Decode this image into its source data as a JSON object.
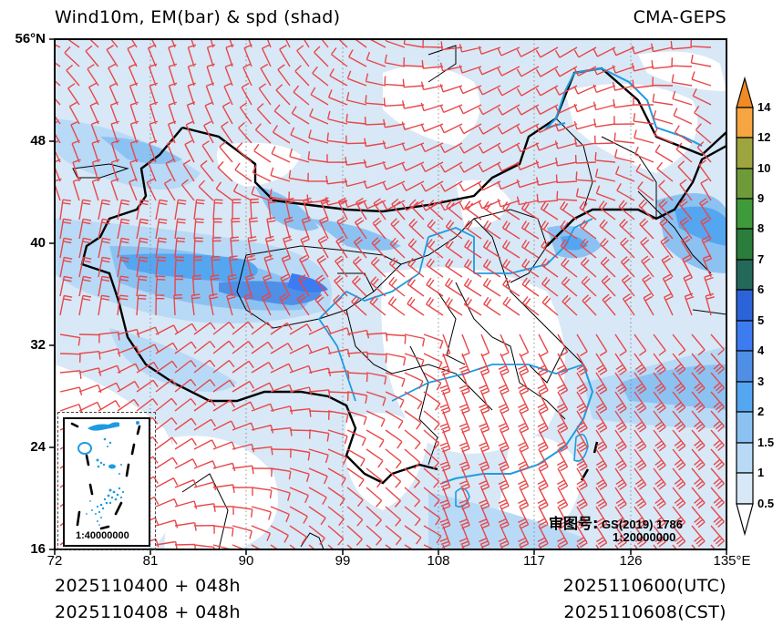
{
  "header": {
    "title": "Wind10m, EM(bar) & spd (shad)",
    "model": "CMA-GEPS"
  },
  "map": {
    "extent": {
      "lon_min": 72,
      "lon_max": 135,
      "lat_min": 16,
      "lat_max": 56
    },
    "lat_ticks": [
      {
        "value": 56,
        "label": "56°N"
      },
      {
        "value": 48,
        "label": "48"
      },
      {
        "value": 40,
        "label": "40"
      },
      {
        "value": 32,
        "label": "32"
      },
      {
        "value": 24,
        "label": "24"
      },
      {
        "value": 16,
        "label": "16"
      }
    ],
    "lon_ticks": [
      {
        "value": 72,
        "label": "72"
      },
      {
        "value": 81,
        "label": "81"
      },
      {
        "value": 90,
        "label": "90"
      },
      {
        "value": 99,
        "label": "99"
      },
      {
        "value": 108,
        "label": "108"
      },
      {
        "value": 117,
        "label": "117"
      },
      {
        "value": 126,
        "label": "126"
      },
      {
        "value": 135,
        "label": "135°E"
      }
    ],
    "barb_color": "#e8474a",
    "boundary_color": "#000000",
    "river_color": "#1e9be0",
    "approval_label": "审图号:",
    "approval_code": "GS(2019) 1786",
    "main_scale": "1:20000000",
    "inset_scale": "1:40000000"
  },
  "colorbar": {
    "unit_hint": "wind speed shading",
    "levels": [
      {
        "label": "14",
        "color": "#f08a24"
      },
      {
        "label": "12",
        "color": "#f6a540"
      },
      {
        "label": "10",
        "color": "#9fa53e"
      },
      {
        "label": "9",
        "color": "#6f9a3a"
      },
      {
        "label": "8",
        "color": "#3f9a3a"
      },
      {
        "label": "7",
        "color": "#2a7d3a"
      },
      {
        "label": "6",
        "color": "#23695a"
      },
      {
        "label": "5",
        "color": "#2a64d8"
      },
      {
        "label": "4",
        "color": "#3d7cf0"
      },
      {
        "label": "3",
        "color": "#4f8fe6"
      },
      {
        "label": "2",
        "color": "#55a6f0"
      },
      {
        "label": "1.5",
        "color": "#8cc2f2"
      },
      {
        "label": "1",
        "color": "#b8daf6"
      },
      {
        "label": "0.5",
        "color": "#d8e8f6"
      }
    ]
  },
  "footer": {
    "init_utc": "2025110400 + 048h",
    "init_cst": "2025110408 + 048h",
    "valid_utc": "2025110600(UTC)",
    "valid_cst": "2025110608(CST)"
  }
}
